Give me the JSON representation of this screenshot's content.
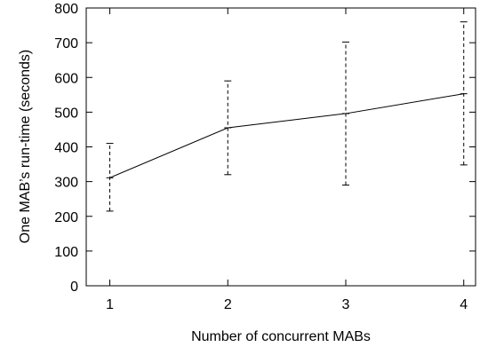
{
  "chart_data": {
    "type": "line",
    "title": "",
    "xlabel": "Number of concurrent MABs",
    "ylabel": "One MAB’s run-time (seconds)",
    "x": [
      1,
      2,
      3,
      4
    ],
    "xticks": [
      "1",
      "2",
      "3",
      "4"
    ],
    "yticks": [
      "0",
      "100",
      "200",
      "300",
      "400",
      "500",
      "600",
      "700",
      "800"
    ],
    "xlim": [
      0.8,
      4.1
    ],
    "ylim": [
      0,
      800
    ],
    "grid": false,
    "series": [
      {
        "values": [
          311,
          455,
          496,
          553
        ],
        "error_low": [
          215,
          320,
          290,
          348
        ],
        "error_high": [
          410,
          590,
          702,
          760
        ],
        "color": "#000000",
        "error_style": "dashed"
      }
    ]
  }
}
